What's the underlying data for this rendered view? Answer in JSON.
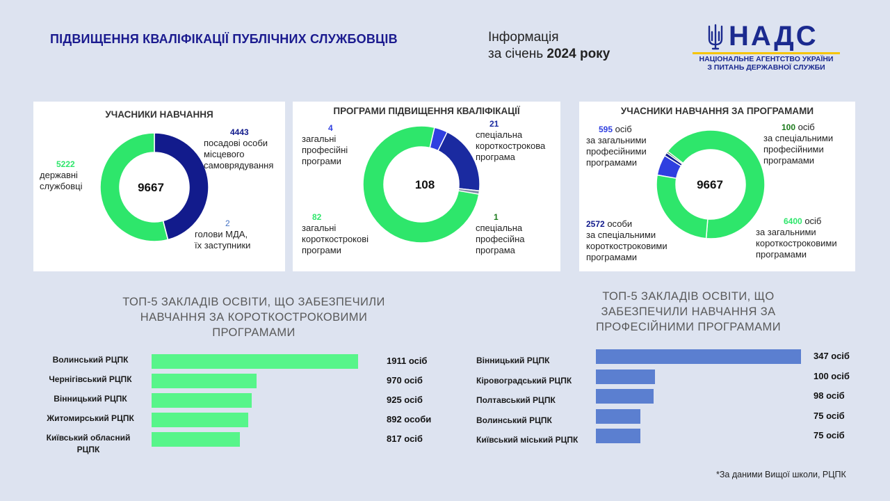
{
  "header": {
    "title": "ПІДВИЩЕННЯ КВАЛІФІКАЦІЇ ПУБЛІЧНИХ СЛУЖБОВЦІВ",
    "info_line1": "Інформація",
    "info_line2_prefix": "за січень ",
    "info_line2_bold": "2024 року",
    "logo_word": "НАДС",
    "logo_sub1": "НАЦІОНАЛЬНЕ АГЕНТСТВО УКРАЇНИ",
    "logo_sub2": "З ПИТАНЬ ДЕРЖАВНОЇ СЛУЖБИ"
  },
  "colors": {
    "green": "#2ee66b",
    "navy": "#121b8c",
    "navy2": "#1a2aa0",
    "mid_blue": "#2f3fe0",
    "light_blue": "#4472c4",
    "bar_green": "#57f58a",
    "bar_blue": "#5b7fd0",
    "dark_green": "#1b7a1b",
    "grey": "#7f8ba8"
  },
  "chart_data": [
    {
      "type": "pie",
      "title": "УЧАСНИКИ НАВЧАННЯ",
      "total_label": "9667",
      "slices": [
        {
          "value": 4443,
          "value_label": "4443",
          "text": [
            "посадові особи",
            "місцевого",
            "самоврядування"
          ],
          "color": "#121b8c"
        },
        {
          "value": 2,
          "value_label": "2",
          "text": [
            "голови МДА,",
            "їх заступники"
          ],
          "color": "#7f8ba8"
        },
        {
          "value": 5222,
          "value_label": "5222",
          "text": [
            "державні",
            "службовці"
          ],
          "color": "#2ee66b"
        }
      ]
    },
    {
      "type": "pie",
      "title": "ПРОГРАМИ ПІДВИЩЕННЯ КВАЛІФІКАЦІЇ",
      "total_label": "108",
      "slices": [
        {
          "value": 4,
          "value_label": "4",
          "text": [
            "загальні",
            "професійні",
            "програми"
          ],
          "color": "#2f3fe0"
        },
        {
          "value": 21,
          "value_label": "21",
          "text": [
            "спеціальна",
            "короткострокова",
            "програма"
          ],
          "color": "#1a2aa0"
        },
        {
          "value": 1,
          "value_label": "1",
          "text": [
            "спеціальна",
            "професійна",
            "програма"
          ],
          "color": "#7f8ba8"
        },
        {
          "value": 82,
          "value_label": "82",
          "text": [
            "загальні",
            "короткострокові",
            "програми"
          ],
          "color": "#2ee66b"
        }
      ]
    },
    {
      "type": "pie",
      "title": "УЧАСНИКИ НАВЧАННЯ ЗА ПРОГРАМАМИ",
      "total_label": "9667",
      "slices": [
        {
          "value": 595,
          "value_label": "595",
          "text_first": " осіб",
          "text": [
            "за загальними",
            "професійними",
            "програмами"
          ],
          "color": "#2f3fe0"
        },
        {
          "value": 100,
          "value_label": "100",
          "text_first": " осіб",
          "text": [
            "за спеціальними",
            "професійними",
            "програмами"
          ],
          "color": "#121b8c"
        },
        {
          "value": 50,
          "value_label": "",
          "text": [],
          "color": "#1b7a1b"
        },
        {
          "value": 6400,
          "value_label": "6400",
          "text_first": " осіб",
          "text": [
            "за загальними",
            "короткостроковими",
            "програмами"
          ],
          "color": "#2ee66b"
        },
        {
          "value": 2572,
          "value_label": "2572",
          "text_first": " особи",
          "text": [
            "за спеціальними",
            "короткостроковими",
            "програмами"
          ],
          "color": "#2ee66b"
        }
      ]
    },
    {
      "type": "bar",
      "orientation": "horizontal",
      "title": [
        "ТОП-5 ЗАКЛАДІВ ОСВІТИ, ЩО ЗАБЕЗПЕЧИЛИ",
        "НАВЧАННЯ ЗА КОРОТКОСТРОКОВИМИ",
        "ПРОГРАМАМИ"
      ],
      "categories": [
        "Волинський РЦПК",
        "Чернігівський РЦПК",
        "Вінницький РЦПК",
        "Житомирський РЦПК",
        "Київський обласний РЦПК"
      ],
      "values": [
        1911,
        970,
        925,
        892,
        817
      ],
      "value_labels": [
        "1911 осіб",
        "970 осіб",
        "925 осіб",
        "892 особи",
        "817 осіб"
      ]
    },
    {
      "type": "bar",
      "orientation": "horizontal",
      "title": [
        "ТОП-5 ЗАКЛАДІВ ОСВІТИ, ЩО",
        "ЗАБЕЗПЕЧИЛИ НАВЧАННЯ ЗА",
        "ПРОФЕСІЙНИМИ ПРОГРАМАМИ"
      ],
      "categories": [
        "Вінницький РЦПК",
        "Кіровоградський РЦПК",
        "Полтавський РЦПК",
        "Волинський РЦПК",
        "Київський міський РЦПК"
      ],
      "values": [
        347,
        100,
        98,
        75,
        75
      ],
      "value_labels": [
        "347 осіб",
        "100 осіб",
        "98 осіб",
        "75 осіб",
        "75 осіб"
      ]
    }
  ],
  "footnote": "*За даними Вищої школи, РЦПК"
}
